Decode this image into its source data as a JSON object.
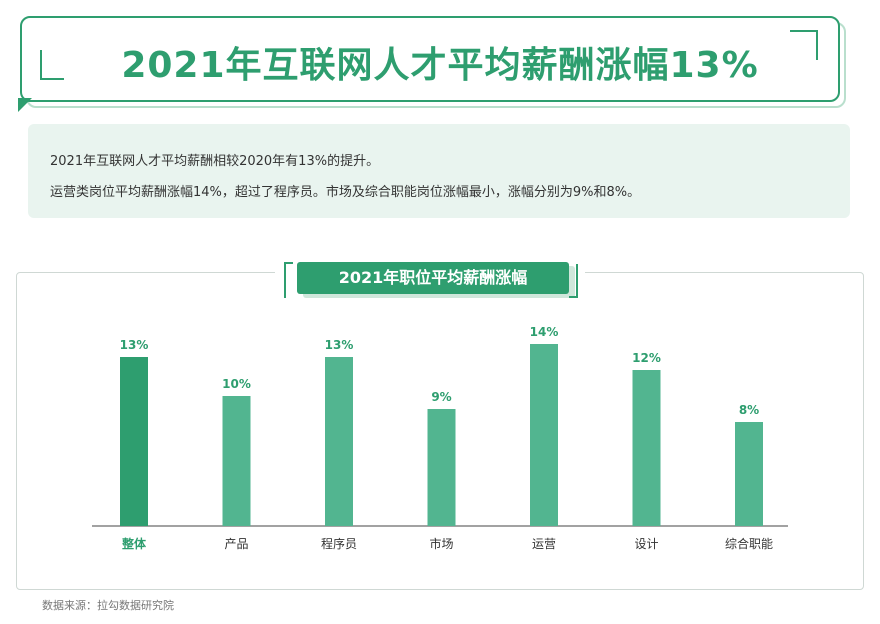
{
  "header": {
    "title": "2021年互联网人才平均薪酬涨幅13%"
  },
  "summary": {
    "line1": "2021年互联网人才平均薪酬相较2020年有13%的提升。",
    "line2": "运营类岗位平均薪酬涨幅14%，超过了程序员。市场及综合职能岗位涨幅最小，涨幅分别为9%和8%。"
  },
  "chart_data": {
    "type": "bar",
    "title": "2021年职位平均薪酬涨幅",
    "categories": [
      "整体",
      "产品",
      "程序员",
      "市场",
      "运营",
      "设计",
      "综合职能"
    ],
    "values": [
      13,
      10,
      13,
      9,
      14,
      12,
      8
    ],
    "value_labels": [
      "13%",
      "10%",
      "13%",
      "9%",
      "14%",
      "12%",
      "8%"
    ],
    "xlabel": "",
    "ylabel": "",
    "ylim": [
      0,
      14
    ],
    "grid": false,
    "highlight_color": "#2e9e6f",
    "bar_color": "#52b590",
    "highlight_category": "整体"
  },
  "footer": {
    "source": "数据来源：拉勾数据研究院"
  }
}
